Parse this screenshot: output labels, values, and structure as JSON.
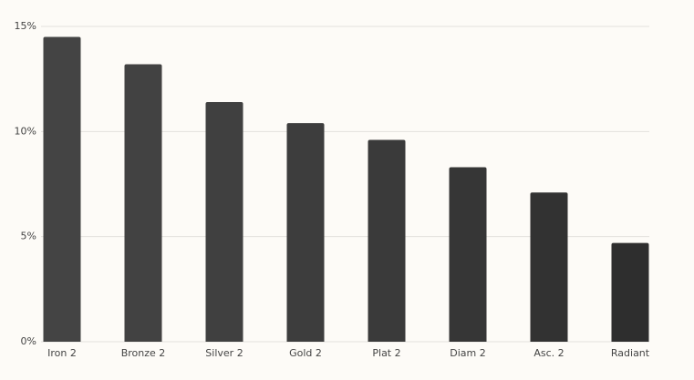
{
  "chart_data": {
    "type": "bar",
    "categories": [
      "Iron 2",
      "Bronze 2",
      "Silver 2",
      "Gold 2",
      "Plat 2",
      "Diam 2",
      "Asc. 2",
      "Radiant"
    ],
    "values": [
      14.5,
      13.2,
      11.4,
      10.4,
      9.6,
      8.3,
      7.1,
      4.7
    ],
    "colors": [
      "#444444",
      "#424242",
      "#404040",
      "#3d3d3d",
      "#3a3a3a",
      "#363636",
      "#323232",
      "#2e2e2e"
    ],
    "ylim": [
      0,
      15
    ],
    "yticks": [
      {
        "value": 0,
        "label": "0%"
      },
      {
        "value": 5,
        "label": "5%"
      },
      {
        "value": 10,
        "label": "10%"
      },
      {
        "value": 15,
        "label": "15%"
      }
    ],
    "grid": true
  }
}
